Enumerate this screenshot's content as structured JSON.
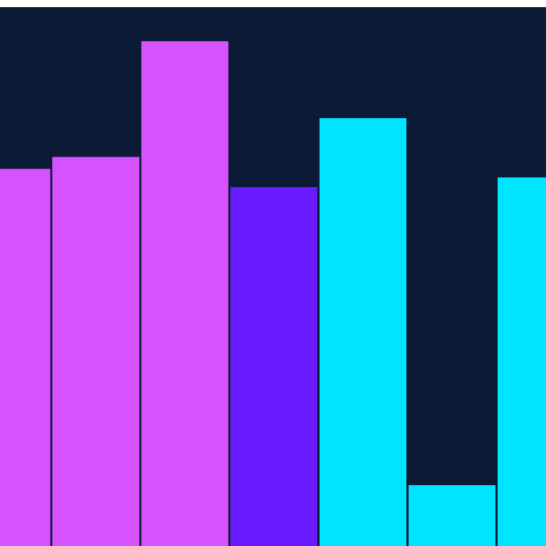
{
  "chart_data": {
    "type": "bar",
    "title": "",
    "xlabel": "",
    "ylabel": "",
    "grid": false,
    "legend": "none",
    "ylim": [
      0,
      100
    ],
    "values": [
      70,
      72.2,
      93.7,
      66.6,
      79.4,
      11.3,
      68.4
    ],
    "colors": [
      "#d752ff",
      "#d752ff",
      "#d752ff",
      "#6a1bff",
      "#00e5ff",
      "#00e5ff",
      "#00e5ff"
    ],
    "background": "#0b1b36"
  }
}
